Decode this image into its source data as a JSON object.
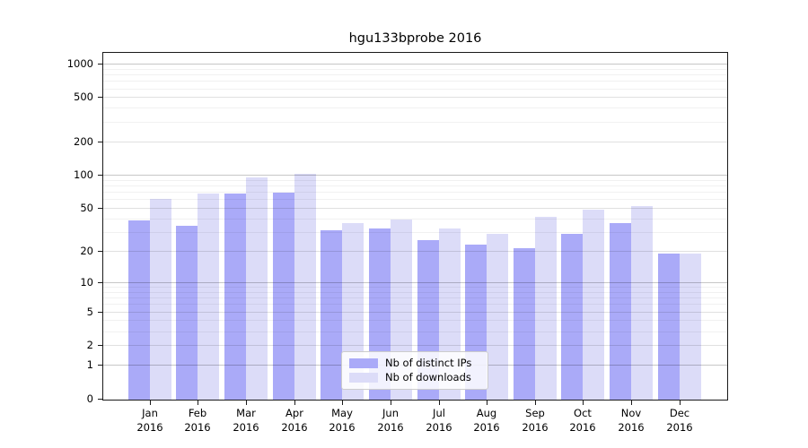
{
  "title": "hgu133bprobe 2016",
  "colors": {
    "ips_bar": "#aaaaf8",
    "downloads_bar": "#dcdcf8",
    "axis": "#1a1a1a",
    "legend_border": "#cccccc"
  },
  "legend": {
    "position": "lower center",
    "items": [
      {
        "label": "Nb of distinct IPs",
        "color": "#aaaaf8"
      },
      {
        "label": "Nb of downloads",
        "color": "#dcdcf8"
      }
    ]
  },
  "chart_data": {
    "type": "bar",
    "title": "hgu133bprobe 2016",
    "categories": [
      "Jan",
      "Feb",
      "Mar",
      "Apr",
      "May",
      "Jun",
      "Jul",
      "Aug",
      "Sep",
      "Oct",
      "Nov",
      "Dec"
    ],
    "x_tick_second_line": "2016",
    "series": [
      {
        "name": "Nb of distinct IPs",
        "color": "#aaaaf8",
        "values": [
          38,
          34,
          67,
          69,
          31,
          32,
          25,
          23,
          21,
          29,
          36,
          19
        ]
      },
      {
        "name": "Nb of downloads",
        "color": "#dcdcf8",
        "values": [
          60,
          68,
          94,
          102,
          36,
          39,
          32,
          29,
          41,
          48,
          52,
          19
        ]
      }
    ],
    "xlabel": "",
    "ylabel": "",
    "y_scale": "log10(1+value)",
    "y_ticks": [
      0,
      1,
      2,
      5,
      10,
      20,
      50,
      100,
      200,
      500,
      1000
    ],
    "ylim": [
      0,
      1250
    ],
    "grid": true,
    "y_gridlines": {
      "major": [
        1,
        10,
        100,
        1000
      ],
      "mid": [
        2,
        5,
        20,
        50,
        200,
        500
      ],
      "minor": [
        3,
        4,
        6,
        7,
        8,
        9,
        30,
        40,
        60,
        70,
        80,
        90,
        300,
        400,
        600,
        700,
        800,
        900
      ]
    },
    "legend_position": "lower center"
  }
}
